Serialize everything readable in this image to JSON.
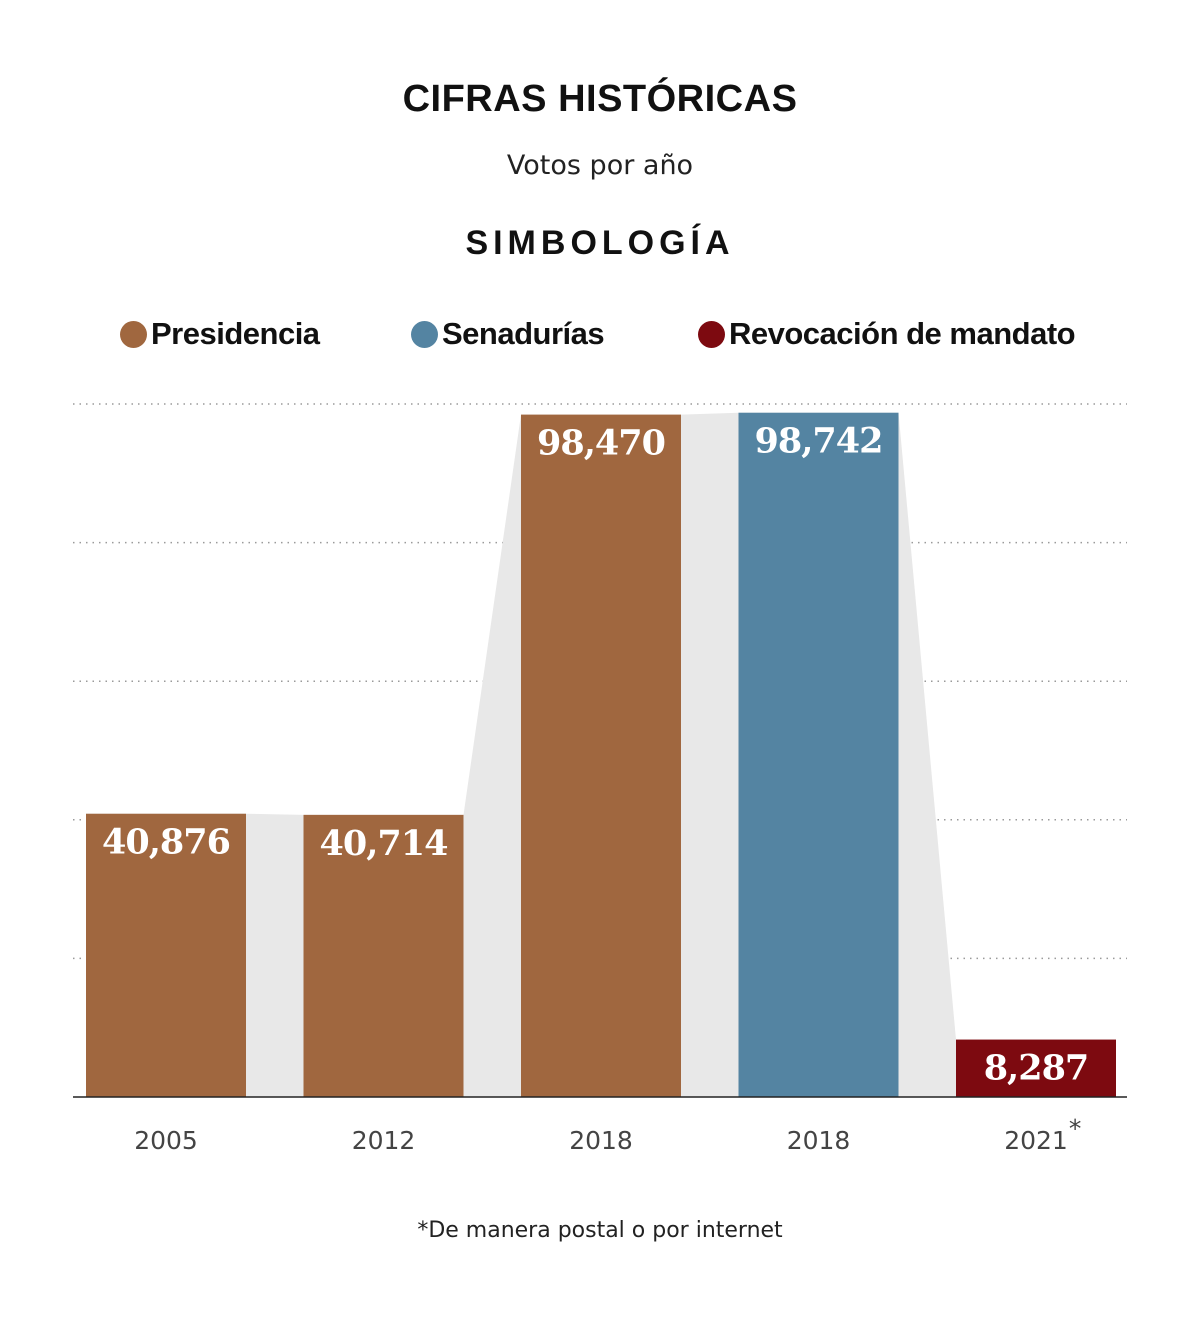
{
  "chart_data": {
    "type": "bar",
    "title": "CIFRAS HISTÓRICAS",
    "subtitle": "Votos por año",
    "legend_title": "SIMBOLOGÍA",
    "legend": [
      {
        "name": "Presidencia",
        "color": "#a0673f"
      },
      {
        "name": "Senadurías",
        "color": "#5484a2"
      },
      {
        "name": "Revocación de mandato",
        "color": "#7d0a10"
      }
    ],
    "categories": [
      "2005",
      "2012",
      "2018",
      "2018",
      "2021"
    ],
    "category_marks": [
      "",
      "",
      "",
      "",
      "*"
    ],
    "values": [
      40876,
      40714,
      98470,
      98742,
      8287
    ],
    "value_labels": [
      "40,876",
      "40,714",
      "98,470",
      "98,742",
      "8,287"
    ],
    "series_index": [
      0,
      0,
      0,
      1,
      2
    ],
    "ylim": [
      0,
      100000
    ],
    "grid": true,
    "legend_placement": "top",
    "footnote": "*De manera postal o por internet"
  }
}
